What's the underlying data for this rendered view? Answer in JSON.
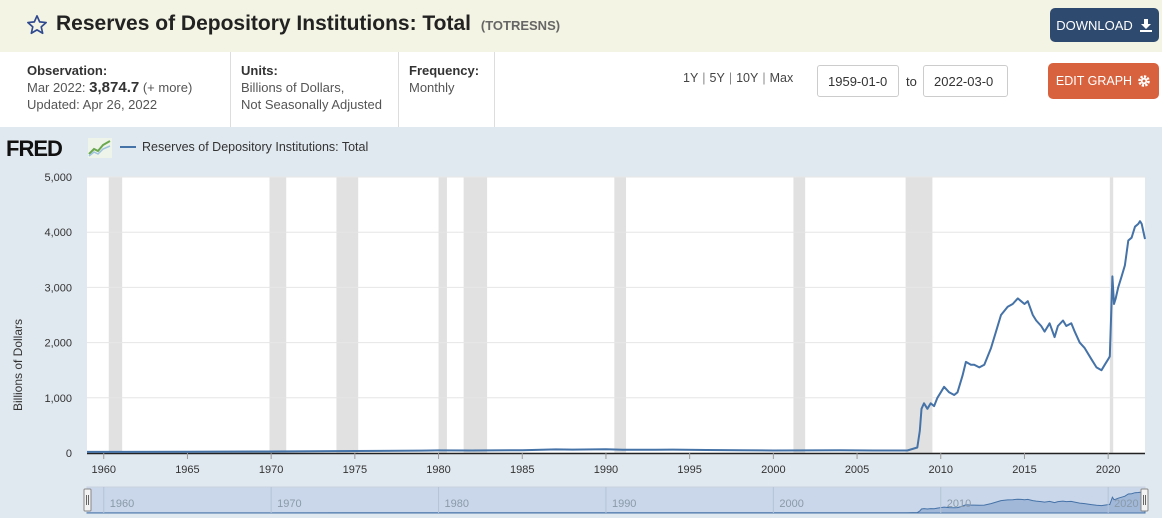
{
  "header": {
    "title": "Reserves of Depository Institutions: Total",
    "series_id": "(TOTRESNS)",
    "download_label": "DOWNLOAD"
  },
  "meta": {
    "observation_label": "Observation:",
    "observation_period": "Mar 2022:",
    "observation_value": "3,874.7",
    "observation_more": "(+ more)",
    "updated": "Updated: Apr 26, 2022",
    "units_label": "Units:",
    "units_line1": "Billions of Dollars,",
    "units_line2": "Not Seasonally Adjusted",
    "frequency_label": "Frequency:",
    "frequency_value": "Monthly"
  },
  "controls": {
    "ranges": [
      "1Y",
      "5Y",
      "10Y",
      "Max"
    ],
    "start_date": "1959-01-0",
    "to_label": "to",
    "end_date": "2022-03-0",
    "edit_label": "EDIT GRAPH"
  },
  "colors": {
    "series": "#4572a7",
    "recession": "#e1e1e1",
    "plot_bg": "#ffffff",
    "chart_bg": "#e1e9f0",
    "download_btn": "#2f4a6f",
    "edit_btn": "#d9623e"
  },
  "branding": {
    "logo": "FRED"
  },
  "chart_data": {
    "type": "line",
    "title": "",
    "xlabel": "",
    "ylabel": "Billions of Dollars",
    "xlim": [
      1959.0,
      2022.2
    ],
    "ylim": [
      0,
      5000
    ],
    "yticks": [
      0,
      1000,
      2000,
      3000,
      4000,
      5000
    ],
    "ytick_labels": [
      "0",
      "1,000",
      "2,000",
      "3,000",
      "4,000",
      "5,000"
    ],
    "xticks": [
      1960,
      1965,
      1970,
      1975,
      1980,
      1985,
      1990,
      1995,
      2000,
      2005,
      2010,
      2015,
      2020
    ],
    "navigator_ticks": [
      1960,
      1970,
      1980,
      1990,
      2000,
      2010,
      2020
    ],
    "grid": "horizontal",
    "legend": "top-left",
    "recessions": [
      [
        1960.3,
        1961.1
      ],
      [
        1969.9,
        1970.9
      ],
      [
        1973.9,
        1975.2
      ],
      [
        1980.0,
        1980.5
      ],
      [
        1981.5,
        1982.9
      ],
      [
        1990.5,
        1991.2
      ],
      [
        2001.2,
        2001.9
      ],
      [
        2007.9,
        2009.5
      ],
      [
        2020.1,
        2020.3
      ]
    ],
    "series": [
      {
        "name": "Reserves of Depository Institutions: Total",
        "x": [
          1959.0,
          1965.0,
          1970.0,
          1975.0,
          1979.0,
          1980.0,
          1982.0,
          1985.0,
          1987.0,
          1988.0,
          1990.0,
          1991.0,
          1992.0,
          1993.0,
          1994.0,
          1996.0,
          1998.0,
          2000.0,
          2002.0,
          2004.0,
          2006.0,
          2007.0,
          2008.0,
          2008.6,
          2008.75,
          2008.85,
          2009.0,
          2009.2,
          2009.4,
          2009.6,
          2009.8,
          2010.0,
          2010.2,
          2010.5,
          2010.8,
          2011.0,
          2011.3,
          2011.5,
          2011.8,
          2012.0,
          2012.3,
          2012.6,
          2013.0,
          2013.3,
          2013.6,
          2014.0,
          2014.3,
          2014.6,
          2014.8,
          2015.0,
          2015.2,
          2015.5,
          2015.7,
          2016.0,
          2016.2,
          2016.5,
          2016.8,
          2017.0,
          2017.3,
          2017.5,
          2017.8,
          2018.0,
          2018.3,
          2018.6,
          2019.0,
          2019.3,
          2019.6,
          2019.8,
          2020.0,
          2020.1,
          2020.25,
          2020.35,
          2020.45,
          2020.6,
          2020.8,
          2021.0,
          2021.2,
          2021.4,
          2021.6,
          2021.8,
          2021.9,
          2022.0,
          2022.2
        ],
        "values": [
          20,
          22,
          28,
          36,
          44,
          48,
          45,
          50,
          65,
          62,
          68,
          60,
          58,
          60,
          62,
          55,
          50,
          45,
          48,
          50,
          45,
          45,
          45,
          100,
          400,
          800,
          900,
          800,
          900,
          850,
          1000,
          1100,
          1200,
          1100,
          1050,
          1100,
          1400,
          1650,
          1600,
          1600,
          1550,
          1600,
          1900,
          2200,
          2500,
          2650,
          2700,
          2800,
          2750,
          2700,
          2750,
          2500,
          2400,
          2300,
          2200,
          2350,
          2100,
          2300,
          2400,
          2300,
          2350,
          2200,
          2000,
          1900,
          1700,
          1550,
          1500,
          1600,
          1700,
          1750,
          3200,
          2700,
          2800,
          3000,
          3200,
          3400,
          3850,
          3900,
          4100,
          4150,
          4200,
          4150,
          3875
        ]
      }
    ]
  }
}
